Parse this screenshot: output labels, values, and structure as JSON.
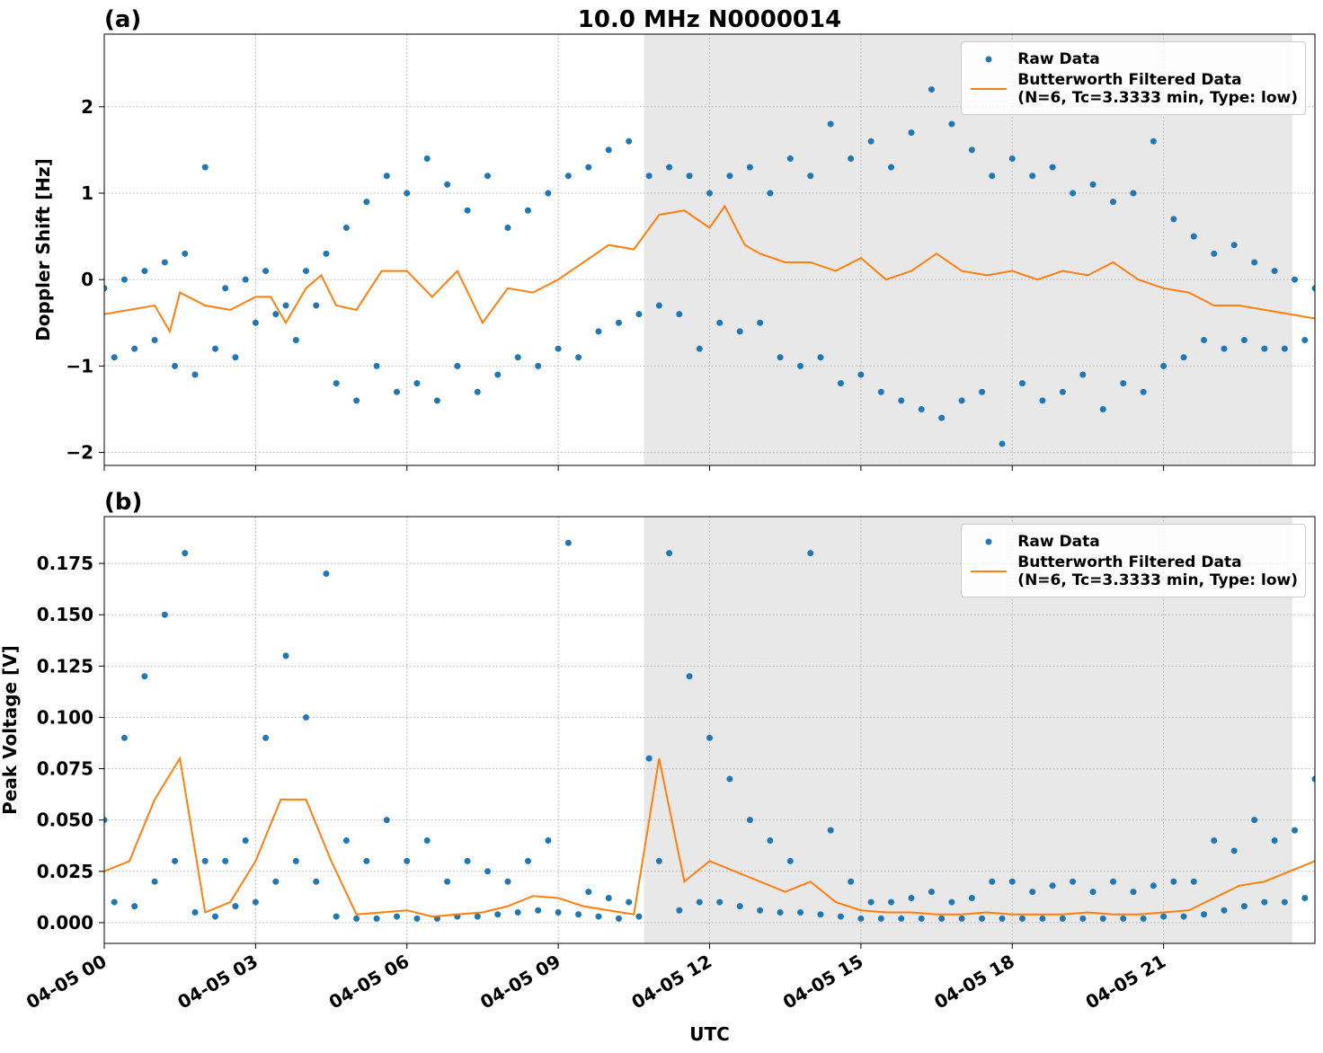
{
  "chart_data": [
    {
      "type": "line",
      "panel_label": "(a)",
      "title": "10.0 MHz N0000014",
      "ylabel": "Doppler Shift [Hz]",
      "xlim": [
        0,
        24
      ],
      "xticks": [
        0,
        3,
        6,
        9,
        12,
        15,
        18,
        21
      ],
      "ylim": [
        -2.15,
        2.84
      ],
      "yticks": [
        {
          "value": -2,
          "label": "−2"
        },
        {
          "value": -1,
          "label": "−1"
        },
        0,
        1,
        2
      ],
      "grid": true,
      "legend": "upper right",
      "shaded_span": [
        10.7,
        23.55
      ],
      "shade_color": "#e8e8e8",
      "series": [
        {
          "name": "Raw Data",
          "mode": "markers",
          "color": "#1f77b4",
          "x": [
            0,
            0.4,
            0.8,
            1.2,
            1.6,
            2.0,
            2.4,
            2.8,
            3.2,
            3.6,
            4.0,
            4.4,
            4.8,
            5.2,
            5.6,
            6.0,
            6.4,
            6.8,
            7.2,
            7.6,
            8.0,
            8.4,
            8.8,
            9.2,
            9.6,
            10.0,
            10.4,
            10.8,
            11.2,
            11.6,
            12.0,
            12.4,
            12.8,
            13.2,
            13.6,
            14.0,
            14.4,
            14.8,
            15.2,
            15.6,
            16.0,
            16.4,
            16.8,
            17.2,
            17.6,
            18.0,
            18.4,
            18.8,
            19.2,
            19.6,
            20.0,
            20.4,
            20.8,
            21.2,
            21.6,
            22.0,
            22.4,
            22.8,
            23.2,
            23.6,
            24.0,
            0.2,
            0.6,
            1.0,
            1.4,
            1.8,
            2.2,
            2.6,
            3.0,
            3.4,
            3.8,
            4.2,
            4.6,
            5.0,
            5.4,
            5.8,
            6.2,
            6.6,
            7.0,
            7.4,
            7.8,
            8.2,
            8.6,
            9.0,
            9.4,
            9.8,
            10.2,
            10.6,
            11.0,
            11.4,
            11.8,
            12.2,
            12.6,
            13.0,
            13.4,
            13.8,
            14.2,
            14.6,
            15.0,
            15.4,
            15.8,
            16.2,
            16.6,
            17.0,
            17.4,
            17.8,
            18.2,
            18.6,
            19.0,
            19.4,
            19.8,
            20.2,
            20.6,
            21.0,
            21.4,
            21.8,
            22.2,
            22.6,
            23.0,
            23.4,
            23.8
          ],
          "values": [
            -0.1,
            0.0,
            0.1,
            0.2,
            0.3,
            1.3,
            -0.1,
            0.0,
            0.1,
            -0.3,
            0.1,
            0.3,
            0.6,
            0.9,
            1.2,
            1.0,
            1.4,
            1.1,
            0.8,
            1.2,
            0.6,
            0.8,
            1.0,
            1.2,
            1.3,
            1.5,
            1.6,
            1.2,
            1.3,
            1.2,
            1.0,
            1.2,
            1.3,
            1.0,
            1.4,
            1.2,
            1.8,
            1.4,
            1.6,
            1.3,
            1.7,
            2.2,
            1.8,
            1.5,
            1.2,
            1.4,
            1.2,
            1.3,
            1.0,
            1.1,
            0.9,
            1.0,
            1.6,
            0.7,
            0.5,
            0.3,
            0.4,
            0.2,
            0.1,
            0.0,
            -0.1,
            -0.9,
            -0.8,
            -0.7,
            -1.0,
            -1.1,
            -0.8,
            -0.9,
            -0.5,
            -0.4,
            -0.7,
            -0.3,
            -1.2,
            -1.4,
            -1.0,
            -1.3,
            -1.2,
            -1.4,
            -1.0,
            -1.3,
            -1.1,
            -0.9,
            -1.0,
            -0.8,
            -0.9,
            -0.6,
            -0.5,
            -0.4,
            -0.3,
            -0.4,
            -0.8,
            -0.5,
            -0.6,
            -0.5,
            -0.9,
            -1.0,
            -0.9,
            -1.2,
            -1.1,
            -1.3,
            -1.4,
            -1.5,
            -1.6,
            -1.4,
            -1.3,
            -1.9,
            -1.2,
            -1.4,
            -1.3,
            -1.1,
            -1.5,
            -1.2,
            -1.3,
            -1.0,
            -0.9,
            -0.7,
            -0.8,
            -0.7,
            -0.8,
            -0.8,
            -0.7
          ]
        },
        {
          "name": "Butterworth Filtered Data\n(N=6, Tc=3.3333 min, Type: low)",
          "mode": "line",
          "color": "#ff7f0e",
          "x": [
            0,
            0.5,
            1.0,
            1.3,
            1.5,
            2.0,
            2.5,
            3.0,
            3.3,
            3.6,
            4.0,
            4.3,
            4.6,
            5.0,
            5.5,
            6.0,
            6.5,
            7.0,
            7.5,
            8.0,
            8.5,
            9.0,
            9.5,
            10.0,
            10.5,
            11.0,
            11.5,
            12.0,
            12.3,
            12.7,
            13.0,
            13.5,
            14.0,
            14.5,
            15.0,
            15.5,
            16.0,
            16.5,
            17.0,
            17.5,
            18.0,
            18.5,
            19.0,
            19.5,
            20.0,
            20.5,
            21.0,
            21.5,
            22.0,
            22.5,
            23.0,
            23.5,
            24.0
          ],
          "values": [
            -0.4,
            -0.35,
            -0.3,
            -0.6,
            -0.15,
            -0.3,
            -0.35,
            -0.2,
            -0.2,
            -0.5,
            -0.1,
            0.05,
            -0.3,
            -0.35,
            0.1,
            0.1,
            -0.2,
            0.1,
            -0.5,
            -0.1,
            -0.15,
            0.0,
            0.2,
            0.4,
            0.35,
            0.75,
            0.8,
            0.6,
            0.85,
            0.4,
            0.3,
            0.2,
            0.2,
            0.1,
            0.25,
            0.0,
            0.1,
            0.3,
            0.1,
            0.05,
            0.1,
            0.0,
            0.1,
            0.05,
            0.2,
            0.0,
            -0.1,
            -0.15,
            -0.3,
            -0.3,
            -0.35,
            -0.4,
            -0.45
          ]
        }
      ]
    },
    {
      "type": "line",
      "panel_label": "(b)",
      "ylabel": "Peak Voltage [V]",
      "xlabel": "UTC",
      "xlim": [
        0,
        24
      ],
      "xticks": [
        {
          "value": 0,
          "label": "04-05 00"
        },
        {
          "value": 3,
          "label": "04-05 03"
        },
        {
          "value": 6,
          "label": "04-05 06"
        },
        {
          "value": 9,
          "label": "04-05 09"
        },
        {
          "value": 12,
          "label": "04-05 12"
        },
        {
          "value": 15,
          "label": "04-05 15"
        },
        {
          "value": 18,
          "label": "04-05 18"
        },
        {
          "value": 21,
          "label": "04-05 21"
        }
      ],
      "ylim": [
        -0.0101,
        0.1978
      ],
      "yticks": [
        {
          "value": 0,
          "label": "0.000"
        },
        {
          "value": 0.025,
          "label": "0.025"
        },
        {
          "value": 0.05,
          "label": "0.050"
        },
        {
          "value": 0.075,
          "label": "0.075"
        },
        {
          "value": 0.1,
          "label": "0.100"
        },
        {
          "value": 0.125,
          "label": "0.125"
        },
        {
          "value": 0.15,
          "label": "0.150"
        },
        {
          "value": 0.175,
          "label": "0.175"
        }
      ],
      "grid": true,
      "legend": "upper right",
      "shaded_span": [
        10.7,
        23.55
      ],
      "shade_color": "#e8e8e8",
      "series": [
        {
          "name": "Raw Data",
          "mode": "markers",
          "color": "#1f77b4",
          "x": [
            0,
            0.4,
            0.8,
            1.2,
            1.6,
            2.0,
            2.4,
            2.8,
            3.2,
            3.6,
            4.0,
            4.4,
            4.8,
            5.2,
            5.6,
            6.0,
            6.4,
            6.8,
            7.2,
            7.6,
            8.0,
            8.4,
            8.8,
            9.2,
            9.6,
            10.0,
            10.4,
            10.8,
            11.2,
            11.6,
            12.0,
            12.4,
            12.8,
            13.2,
            13.6,
            14.0,
            14.4,
            14.8,
            15.2,
            15.6,
            16.0,
            16.4,
            16.8,
            17.2,
            17.6,
            18.0,
            18.4,
            18.8,
            19.2,
            19.6,
            20.0,
            20.4,
            20.8,
            21.2,
            21.6,
            22.0,
            22.4,
            22.8,
            23.2,
            23.6,
            24.0,
            0.2,
            0.6,
            1.0,
            1.4,
            1.8,
            2.2,
            2.6,
            3.0,
            3.4,
            3.8,
            4.2,
            4.6,
            5.0,
            5.4,
            5.8,
            6.2,
            6.6,
            7.0,
            7.4,
            7.8,
            8.2,
            8.6,
            9.0,
            9.4,
            9.8,
            10.2,
            10.6,
            11.0,
            11.4,
            11.8,
            12.2,
            12.6,
            13.0,
            13.4,
            13.8,
            14.2,
            14.6,
            15.0,
            15.4,
            15.8,
            16.2,
            16.6,
            17.0,
            17.4,
            17.8,
            18.2,
            18.6,
            19.0,
            19.4,
            19.8,
            20.2,
            20.6,
            21.0,
            21.4,
            21.8,
            22.2,
            22.6,
            23.0,
            23.4,
            23.8
          ],
          "values": [
            0.05,
            0.09,
            0.12,
            0.15,
            0.18,
            0.03,
            0.03,
            0.04,
            0.09,
            0.13,
            0.1,
            0.17,
            0.04,
            0.03,
            0.05,
            0.03,
            0.04,
            0.02,
            0.03,
            0.025,
            0.02,
            0.03,
            0.04,
            0.185,
            0.015,
            0.012,
            0.01,
            0.08,
            0.18,
            0.12,
            0.09,
            0.07,
            0.05,
            0.04,
            0.03,
            0.18,
            0.045,
            0.02,
            0.01,
            0.01,
            0.012,
            0.015,
            0.01,
            0.012,
            0.02,
            0.02,
            0.015,
            0.018,
            0.02,
            0.015,
            0.02,
            0.015,
            0.018,
            0.02,
            0.02,
            0.04,
            0.035,
            0.05,
            0.04,
            0.045,
            0.07,
            0.01,
            0.008,
            0.02,
            0.03,
            0.005,
            0.003,
            0.008,
            0.01,
            0.02,
            0.03,
            0.02,
            0.003,
            0.002,
            0.002,
            0.003,
            0.002,
            0.002,
            0.003,
            0.003,
            0.004,
            0.005,
            0.006,
            0.005,
            0.004,
            0.003,
            0.002,
            0.003,
            0.03,
            0.006,
            0.01,
            0.01,
            0.008,
            0.006,
            0.005,
            0.005,
            0.004,
            0.003,
            0.002,
            0.002,
            0.002,
            0.002,
            0.002,
            0.002,
            0.002,
            0.002,
            0.002,
            0.002,
            0.002,
            0.002,
            0.002,
            0.002,
            0.002,
            0.003,
            0.003,
            0.004,
            0.006,
            0.008,
            0.01,
            0.01,
            0.012
          ]
        },
        {
          "name": "Butterworth Filtered Data\n(N=6, Tc=3.3333 min, Type: low)",
          "mode": "line",
          "color": "#ff7f0e",
          "x": [
            0,
            0.5,
            1.0,
            1.5,
            2.0,
            2.5,
            3.0,
            3.5,
            4.0,
            4.5,
            5.0,
            5.5,
            6.0,
            6.5,
            7.0,
            7.5,
            8.0,
            8.5,
            9.0,
            9.5,
            10.0,
            10.5,
            11.0,
            11.5,
            12.0,
            12.5,
            13.0,
            13.5,
            14.0,
            14.5,
            15.0,
            15.5,
            16.0,
            16.5,
            17.0,
            17.5,
            18.0,
            18.5,
            19.0,
            19.5,
            20.0,
            20.5,
            21.0,
            21.5,
            22.0,
            22.5,
            23.0,
            23.5,
            24.0
          ],
          "values": [
            0.025,
            0.03,
            0.06,
            0.08,
            0.005,
            0.01,
            0.03,
            0.06,
            0.06,
            0.03,
            0.004,
            0.005,
            0.006,
            0.003,
            0.004,
            0.005,
            0.008,
            0.013,
            0.012,
            0.008,
            0.006,
            0.004,
            0.08,
            0.02,
            0.03,
            0.025,
            0.02,
            0.015,
            0.02,
            0.01,
            0.006,
            0.005,
            0.005,
            0.004,
            0.004,
            0.005,
            0.004,
            0.004,
            0.004,
            0.005,
            0.004,
            0.004,
            0.005,
            0.006,
            0.012,
            0.018,
            0.02,
            0.025,
            0.03
          ]
        }
      ]
    }
  ]
}
